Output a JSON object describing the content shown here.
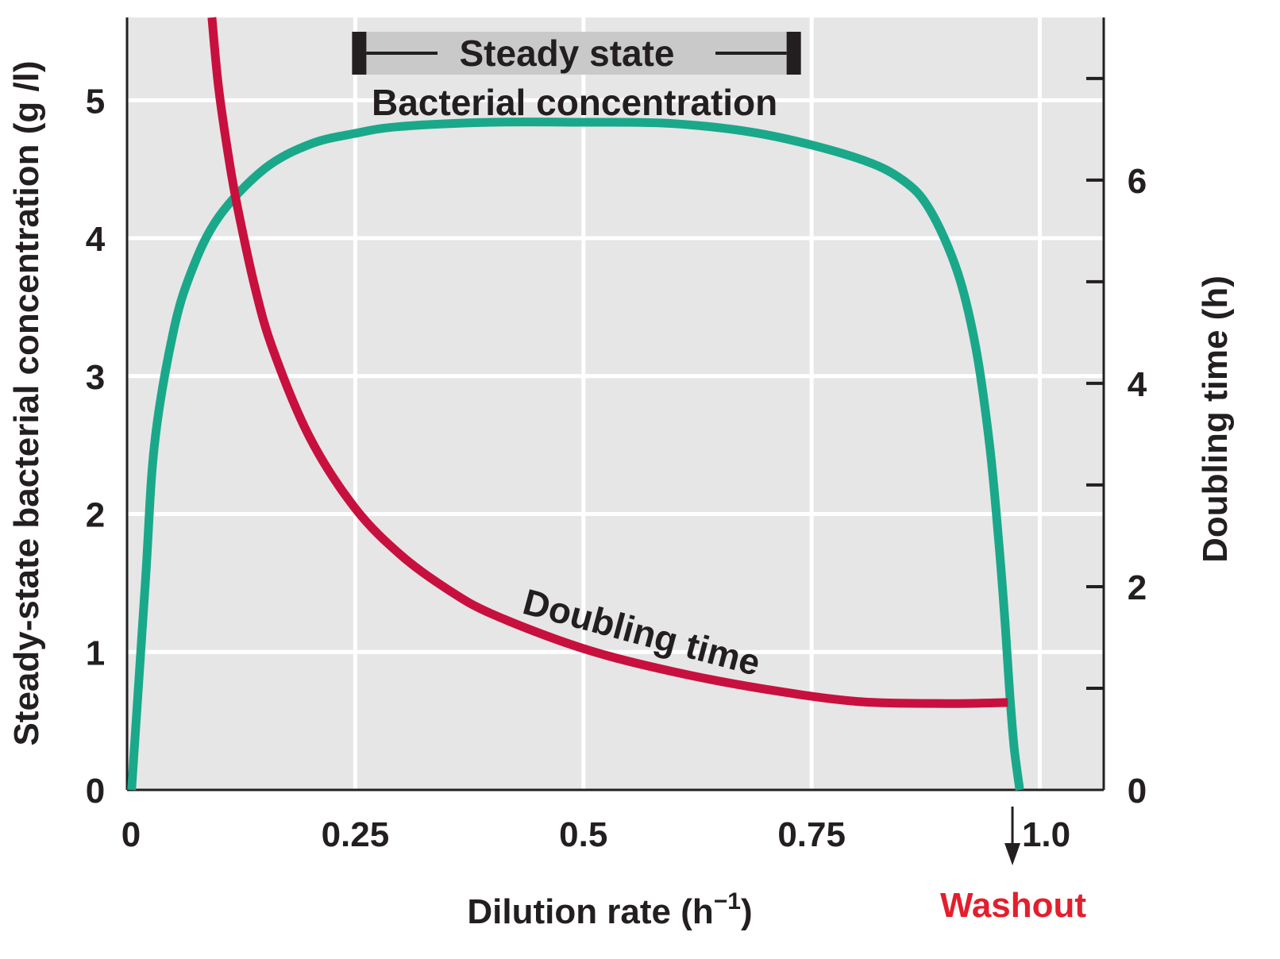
{
  "chart_data": {
    "type": "line",
    "xlabel": "Dilution rate (h",
    "xlabel_superscript": "−1",
    "xlabel_close": ")",
    "ylabel_left": "Steady-state bacterial concentration (g /l)",
    "ylabel_right": "Doubling time (h)",
    "xlim": [
      0,
      1.07
    ],
    "ylim_left": [
      0,
      5.6
    ],
    "ylim_right": [
      0,
      7.6
    ],
    "x_ticks": [
      0,
      0.25,
      0.5,
      0.75,
      1.0
    ],
    "x_tick_labels": [
      "0",
      "0.25",
      "0.5",
      "0.75",
      "1.0"
    ],
    "y_left_ticks": [
      0,
      1,
      2,
      3,
      4,
      5
    ],
    "y_left_tick_labels": [
      "0",
      "1",
      "2",
      "3",
      "4",
      "5"
    ],
    "y_right_ticks": [
      0,
      1,
      2,
      3,
      4,
      5,
      6,
      7
    ],
    "y_right_tick_labels": [
      "0",
      "2",
      "4",
      "6"
    ],
    "y_right_labeled_values": [
      0,
      2,
      4,
      6
    ],
    "grid": true,
    "background_color": "#e6e6e6",
    "series": [
      {
        "name": "Bacterial concentration",
        "axis": "left",
        "color": "#1aa88a",
        "x": [
          0.005,
          0.02,
          0.03,
          0.05,
          0.07,
          0.1,
          0.15,
          0.2,
          0.25,
          0.3,
          0.4,
          0.5,
          0.6,
          0.7,
          0.8,
          0.85,
          0.88,
          0.91,
          0.93,
          0.945,
          0.955,
          0.962,
          0.967,
          0.972,
          0.978
        ],
        "y": [
          0.0,
          1.5,
          2.5,
          3.3,
          3.75,
          4.15,
          4.5,
          4.68,
          4.76,
          4.81,
          4.84,
          4.84,
          4.83,
          4.75,
          4.58,
          4.42,
          4.2,
          3.75,
          3.2,
          2.5,
          1.8,
          1.2,
          0.7,
          0.3,
          0.0
        ]
      },
      {
        "name": "Doubling time",
        "axis": "right",
        "color": "#c8103e",
        "x": [
          0.093,
          0.1,
          0.11,
          0.12,
          0.14,
          0.16,
          0.2,
          0.25,
          0.3,
          0.35,
          0.4,
          0.5,
          0.6,
          0.7,
          0.8,
          0.9,
          0.965
        ],
        "y": [
          7.6,
          6.93,
          6.3,
          5.78,
          4.95,
          4.33,
          3.47,
          2.77,
          2.31,
          1.98,
          1.73,
          1.39,
          1.16,
          0.99,
          0.87,
          0.85,
          0.86
        ]
      }
    ],
    "annotations": {
      "steady_state": "Steady state",
      "steady_state_range": [
        0.25,
        0.74
      ],
      "concentration_label": "Bacterial concentration",
      "doubling_label": "Doubling time",
      "washout_label": "Washout",
      "washout_color": "#e31e2d",
      "washout_x": 0.97
    }
  }
}
